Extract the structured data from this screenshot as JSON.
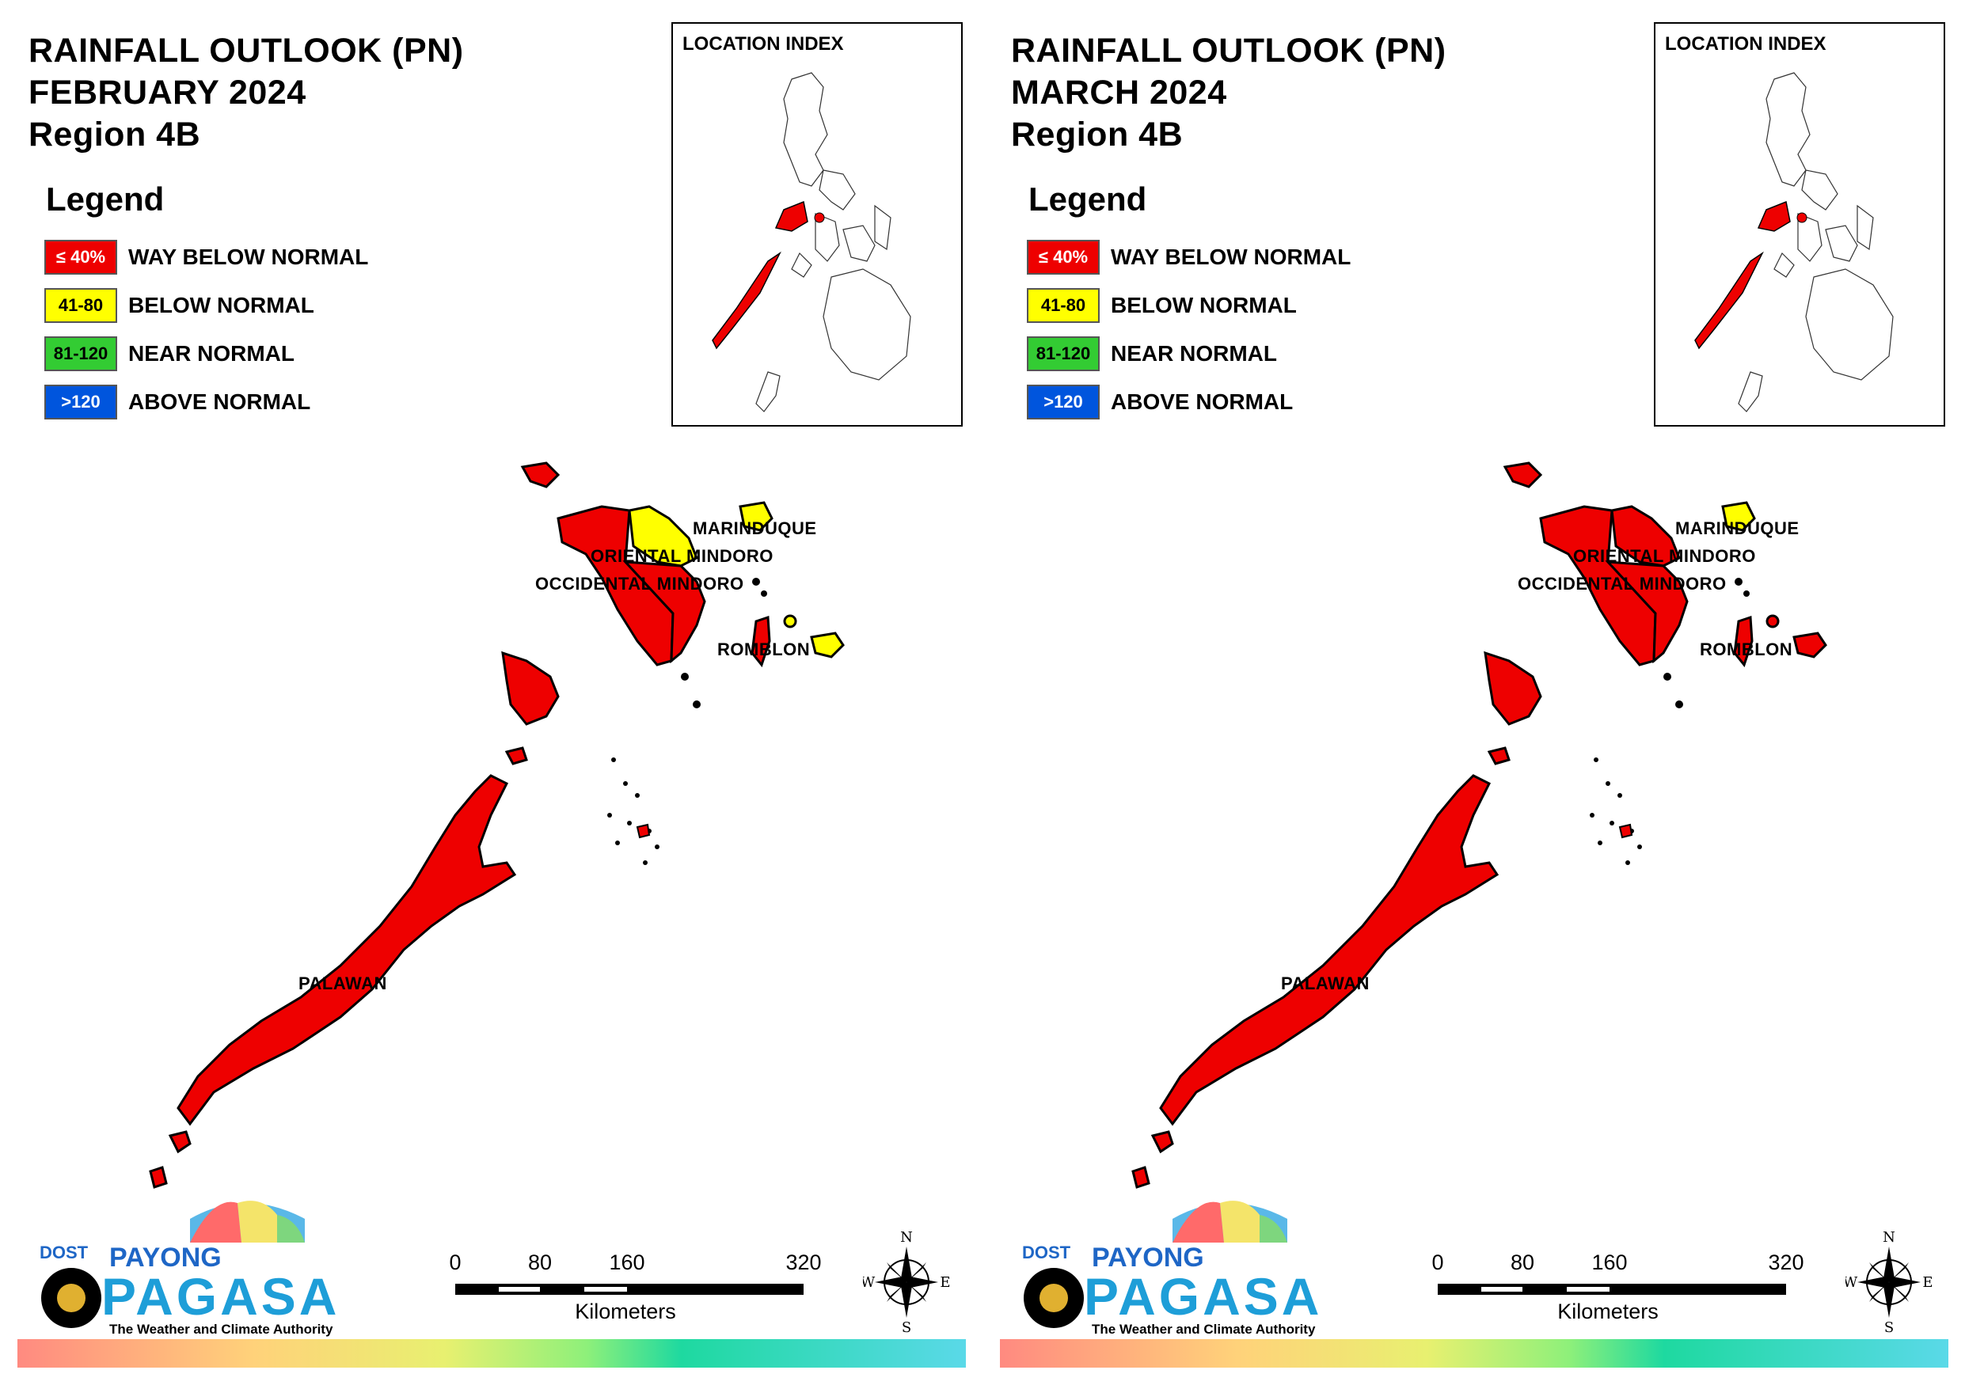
{
  "panels": [
    {
      "title_line1": "RAINFALL OUTLOOK (PN)",
      "title_line2": "FEBRUARY 2024",
      "title_line3": "Region 4B",
      "legend_heading": "Legend",
      "legend": [
        {
          "range": "≤ 40%",
          "label": "WAY BELOW NORMAL",
          "color": "#ee0000"
        },
        {
          "range": "41-80",
          "label": "BELOW NORMAL",
          "color": "#ffff00"
        },
        {
          "range": "81-120",
          "label": "NEAR NORMAL",
          "color": "#33cc33"
        },
        {
          "range": ">120",
          "label": "ABOVE NORMAL",
          "color": "#0055dd"
        }
      ],
      "index_title": "LOCATION INDEX",
      "provinces": {
        "marinduque": {
          "name": "MARINDUQUE",
          "category": "BELOW NORMAL",
          "color": "#ffff00"
        },
        "oriental_mindoro": {
          "name": "ORIENTAL MINDORO",
          "category": "BELOW NORMAL / WAY BELOW NORMAL",
          "color": "#ffff00"
        },
        "occidental_mindoro": {
          "name": "OCCIDENTAL MINDORO",
          "category": "WAY BELOW NORMAL",
          "color": "#ee0000"
        },
        "romblon": {
          "name": "ROMBLON",
          "category": "BELOW NORMAL / WAY BELOW NORMAL",
          "color": "#ffff00"
        },
        "palawan": {
          "name": "PALAWAN",
          "category": "WAY BELOW NORMAL",
          "color": "#ee0000"
        }
      },
      "scale": {
        "ticks": [
          "0",
          "80",
          "160",
          "320"
        ],
        "units": "Kilometers"
      },
      "compass": {
        "n": "N",
        "s": "S",
        "e": "E",
        "w": "W"
      },
      "logo": {
        "dost": "DOST",
        "payong": "PAYONG",
        "pagasa": "PAGASA",
        "tagline": "The Weather and Climate Authority"
      }
    },
    {
      "title_line1": "RAINFALL OUTLOOK (PN)",
      "title_line2": "MARCH 2024",
      "title_line3": "Region 4B",
      "legend_heading": "Legend",
      "legend": [
        {
          "range": "≤ 40%",
          "label": "WAY BELOW NORMAL",
          "color": "#ee0000"
        },
        {
          "range": "41-80",
          "label": "BELOW NORMAL",
          "color": "#ffff00"
        },
        {
          "range": "81-120",
          "label": "NEAR NORMAL",
          "color": "#33cc33"
        },
        {
          "range": ">120",
          "label": "ABOVE NORMAL",
          "color": "#0055dd"
        }
      ],
      "index_title": "LOCATION INDEX",
      "provinces": {
        "marinduque": {
          "name": "MARINDUQUE",
          "category": "BELOW NORMAL",
          "color": "#ffff00"
        },
        "oriental_mindoro": {
          "name": "ORIENTAL MINDORO",
          "category": "WAY BELOW NORMAL",
          "color": "#ee0000"
        },
        "occidental_mindoro": {
          "name": "OCCIDENTAL MINDORO",
          "category": "WAY BELOW NORMAL",
          "color": "#ee0000"
        },
        "romblon": {
          "name": "ROMBLON",
          "category": "WAY BELOW NORMAL",
          "color": "#ee0000"
        },
        "palawan": {
          "name": "PALAWAN",
          "category": "WAY BELOW NORMAL",
          "color": "#ee0000"
        }
      },
      "scale": {
        "ticks": [
          "0",
          "80",
          "160",
          "320"
        ],
        "units": "Kilometers"
      },
      "compass": {
        "n": "N",
        "s": "S",
        "e": "E",
        "w": "W"
      },
      "logo": {
        "dost": "DOST",
        "payong": "PAYONG",
        "pagasa": "PAGASA",
        "tagline": "The Weather and Climate Authority"
      }
    }
  ]
}
